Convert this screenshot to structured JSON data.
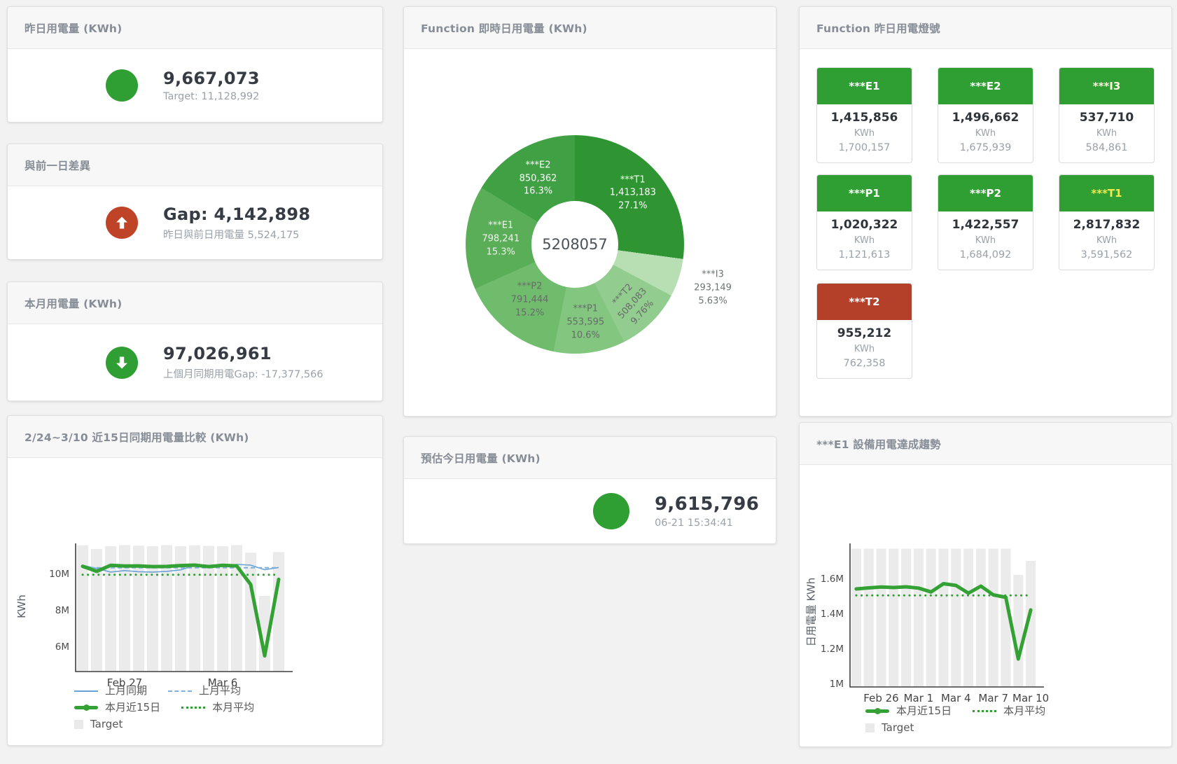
{
  "cards": {
    "yesterday": {
      "title": "昨日用電量 (KWh)",
      "value": "9,667,073",
      "sub": "Target: 11,128,992",
      "status_color": "#2f9e33"
    },
    "day_gap": {
      "title": "與前一日差異",
      "value": "Gap: 4,142,898",
      "sub": "昨日與前日用電量 5,524,175",
      "status_color": "#bf4327",
      "direction": "up"
    },
    "month": {
      "title": "本月用電量 (KWh)",
      "value": "97,026,961",
      "sub": "上個月同期用電Gap: -17,377,566",
      "status_color": "#2f9e33",
      "direction": "down"
    },
    "estimate": {
      "title": "預估今日用電量 (KWh)",
      "value": "9,615,796",
      "sub": "06-21 15:34:41",
      "status_color": "#2f9e33"
    }
  },
  "lights_panel": {
    "title": "Function 昨日用電燈號",
    "unit": "KWh",
    "tiles": [
      {
        "label": "***E1",
        "value": "1,415,856",
        "target": "1,700,157",
        "color": "#2f9e33",
        "label_color": "#ffffff"
      },
      {
        "label": "***E2",
        "value": "1,496,662",
        "target": "1,675,939",
        "color": "#2f9e33",
        "label_color": "#ffffff"
      },
      {
        "label": "***I3",
        "value": "537,710",
        "target": "584,861",
        "color": "#2f9e33",
        "label_color": "#fbfbdf"
      },
      {
        "label": "***P1",
        "value": "1,020,322",
        "target": "1,121,613",
        "color": "#2f9e33",
        "label_color": "#ffffff"
      },
      {
        "label": "***P2",
        "value": "1,422,557",
        "target": "1,684,092",
        "color": "#2f9e33",
        "label_color": "#ffffff"
      },
      {
        "label": "***T1",
        "value": "2,817,832",
        "target": "3,591,562",
        "color": "#2f9e33",
        "label_color": "#eeeb55"
      },
      {
        "label": "***T2",
        "value": "955,212",
        "target": "762,358",
        "color": "#b5402a",
        "label_color": "#ffffff"
      }
    ]
  },
  "chart_data": [
    {
      "type": "pie",
      "title": "Function 即時日用電量 (KWh)",
      "center_total": "5208057",
      "slices": [
        {
          "name": "***T1",
          "value": 1413183,
          "pct": 27.1,
          "pct_label": "27.1%",
          "value_label": "1,413,183",
          "color": "#2e9532",
          "label_color": "#ffffff"
        },
        {
          "name": "***I3",
          "value": 293149,
          "pct": 5.63,
          "pct_label": "5.63%",
          "value_label": "293,149",
          "color": "#b7dfb3",
          "label_color": "#6d7572"
        },
        {
          "name": "***T2",
          "value": 508083,
          "pct": 9.76,
          "pct_label": "9.76%",
          "value_label": "508,083",
          "color": "#92cc8e",
          "label_color": "#666b68"
        },
        {
          "name": "***P1",
          "value": 553595,
          "pct": 10.6,
          "pct_label": "10.6%",
          "value_label": "553,595",
          "color": "#83c680",
          "label_color": "#666b68"
        },
        {
          "name": "***P2",
          "value": 791444,
          "pct": 15.2,
          "pct_label": "15.2%",
          "value_label": "791,444",
          "color": "#6fbc6c",
          "label_color": "#666b68"
        },
        {
          "name": "***E1",
          "value": 798241,
          "pct": 15.3,
          "pct_label": "15.3%",
          "value_label": "798,241",
          "color": "#5aae58",
          "label_color": "#f2f5f0"
        },
        {
          "name": "***E2",
          "value": 850362,
          "pct": 16.3,
          "pct_label": "16.3%",
          "value_label": "850,362",
          "color": "#40a044",
          "label_color": "#ffffff"
        }
      ]
    },
    {
      "type": "line",
      "title": "2/24~3/10 近15日同期用電量比較 (KWh)",
      "ylabel": "KWh",
      "ylim": [
        4616500,
        11654000
      ],
      "grid": false,
      "y_ticks": [
        {
          "v": 6000000,
          "label": "6M"
        },
        {
          "v": 8000000,
          "label": "8M"
        },
        {
          "v": 10000000,
          "label": "10M"
        }
      ],
      "x_ticks": [
        {
          "i": 3,
          "label": "Feb 27"
        },
        {
          "i": 10,
          "label": "Mar 6"
        }
      ],
      "target_bars": {
        "name": "Target",
        "color": "#ebebeb",
        "values": [
          11550000,
          11350000,
          11500000,
          11560000,
          11530000,
          11500000,
          11560000,
          11500000,
          11550000,
          11520000,
          11500000,
          11560000,
          11150000,
          8770000,
          11180000
        ]
      },
      "series": [
        {
          "name": "上月同期",
          "color": "#69a3d4",
          "style": "solid",
          "width": 1.6,
          "values": [
            10450000,
            10280000,
            10080000,
            10160000,
            10100000,
            10080000,
            10120000,
            10200000,
            10450000,
            10400000,
            10430000,
            10500000,
            10460000,
            10210000,
            10330000
          ]
        },
        {
          "name": "上月平均",
          "color": "#7fb0dc",
          "style": "dashed",
          "width": 2,
          "constant": 10320000
        },
        {
          "name": "本月平均",
          "color": "#2f9e33",
          "style": "dotted",
          "width": 3,
          "constant": 9930000
        },
        {
          "name": "本月近15日",
          "color": "#33a133",
          "style": "solid",
          "width": 5,
          "values": [
            10400000,
            10120000,
            10450000,
            10410000,
            10420000,
            10380000,
            10390000,
            10440000,
            10460000,
            10380000,
            10450000,
            10420000,
            9400000,
            5480000,
            9680000
          ]
        }
      ],
      "legend_rows": [
        [
          "上月同期",
          "上月平均"
        ],
        [
          "本月近15日",
          "本月平均"
        ],
        [
          "Target"
        ]
      ]
    },
    {
      "type": "line",
      "title": "***E1 設備用電達成趨勢",
      "ylabel": "日用電量 KWh",
      "ylim": [
        980000,
        1800000
      ],
      "grid": false,
      "y_ticks": [
        {
          "v": 1000000,
          "label": "1M"
        },
        {
          "v": 1200000,
          "label": "1.2M"
        },
        {
          "v": 1400000,
          "label": "1.4M"
        },
        {
          "v": 1600000,
          "label": "1.6M"
        }
      ],
      "x_ticks": [
        {
          "i": 2,
          "label": "Feb 26"
        },
        {
          "i": 5,
          "label": "Mar 1"
        },
        {
          "i": 8,
          "label": "Mar 4"
        },
        {
          "i": 11,
          "label": "Mar 7"
        },
        {
          "i": 14,
          "label": "Mar 10"
        }
      ],
      "target_bars": {
        "name": "Target",
        "color": "#ebebeb",
        "values": [
          1770000,
          1770000,
          1770000,
          1770000,
          1770000,
          1770000,
          1770000,
          1770000,
          1770000,
          1770000,
          1770000,
          1770000,
          1770000,
          1620000,
          1700000
        ]
      },
      "series": [
        {
          "name": "本月平均",
          "color": "#2f9e33",
          "style": "dotted",
          "width": 3,
          "constant": 1503000
        },
        {
          "name": "本月近15日",
          "color": "#33a133",
          "style": "solid",
          "width": 5,
          "values": [
            1540000,
            1546000,
            1551000,
            1548000,
            1552000,
            1545000,
            1523000,
            1570000,
            1560000,
            1516000,
            1556000,
            1506000,
            1492000,
            1140000,
            1420000
          ]
        }
      ],
      "legend_rows": [
        [
          "本月近15日",
          "本月平均"
        ],
        [
          "Target"
        ]
      ]
    }
  ]
}
